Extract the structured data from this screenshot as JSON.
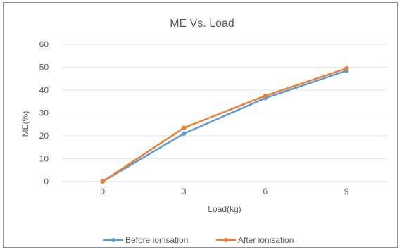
{
  "chart_data": {
    "type": "line",
    "title": "ME Vs. Load",
    "xlabel": "Load(kg)",
    "ylabel": "ME(%)",
    "categories": [
      "0",
      "3",
      "6",
      "9"
    ],
    "ylim": [
      0,
      60
    ],
    "yticks": [
      "0",
      "10",
      "20",
      "30",
      "40",
      "50",
      "60"
    ],
    "grid": true,
    "legend_position": "bottom",
    "series": [
      {
        "name": "Before ionisation",
        "color": "#5b9bd5",
        "values": [
          0,
          21,
          36.5,
          48.5
        ]
      },
      {
        "name": "After ionisation",
        "color": "#ed7d31",
        "values": [
          0,
          23.5,
          37.5,
          49.5
        ]
      }
    ]
  }
}
